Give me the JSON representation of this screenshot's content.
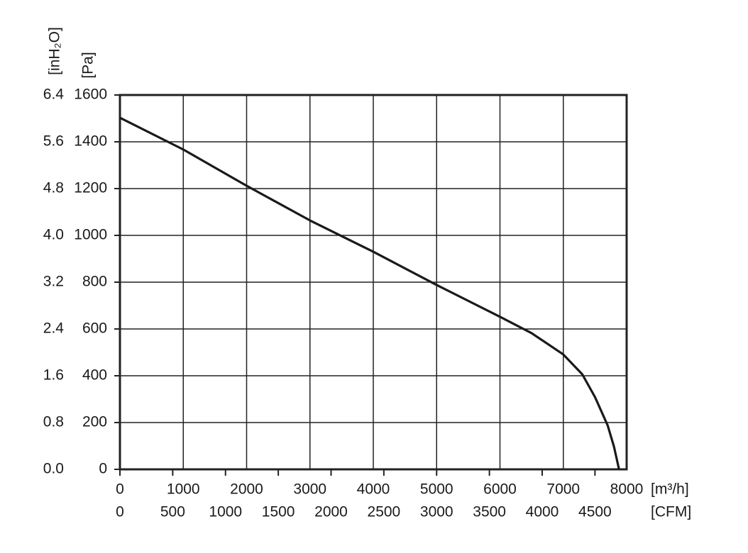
{
  "chart_data": {
    "type": "line",
    "x_label": "[m³/h]",
    "x2_label": "[CFM]",
    "y_label": "[Pa]",
    "y2_label": "[inH₂O]",
    "x": [
      0,
      1000,
      2000,
      3000,
      4000,
      5000,
      6000,
      6500,
      7000,
      7300,
      7500,
      7700,
      7800,
      7880
    ],
    "series": [
      {
        "color": "#1a1a1a",
        "values": [
          1503,
          1367,
          1212,
          1064,
          930,
          788,
          652,
          582,
          491,
          406,
          309,
          188,
          97,
          0
        ]
      }
    ],
    "xlim": [
      0,
      8000
    ],
    "xticks": [
      0,
      1000,
      2000,
      3000,
      4000,
      5000,
      6000,
      7000,
      8000
    ],
    "x2lim": [
      0,
      4800
    ],
    "x2ticks": [
      0,
      500,
      1000,
      1500,
      2000,
      2500,
      3000,
      3500,
      4000,
      4500
    ],
    "ylim": [
      0,
      1600
    ],
    "yticks": [
      0,
      200,
      400,
      600,
      800,
      1000,
      1200,
      1400,
      1600
    ],
    "y2lim": [
      0,
      6.4
    ],
    "y2ticks": [
      {
        "value": 0,
        "label": "0.0"
      },
      0.8,
      1.6,
      2.4,
      3.2,
      {
        "value": 4,
        "label": "4.0"
      },
      4.8,
      5.6,
      6.4
    ],
    "grid": true
  }
}
